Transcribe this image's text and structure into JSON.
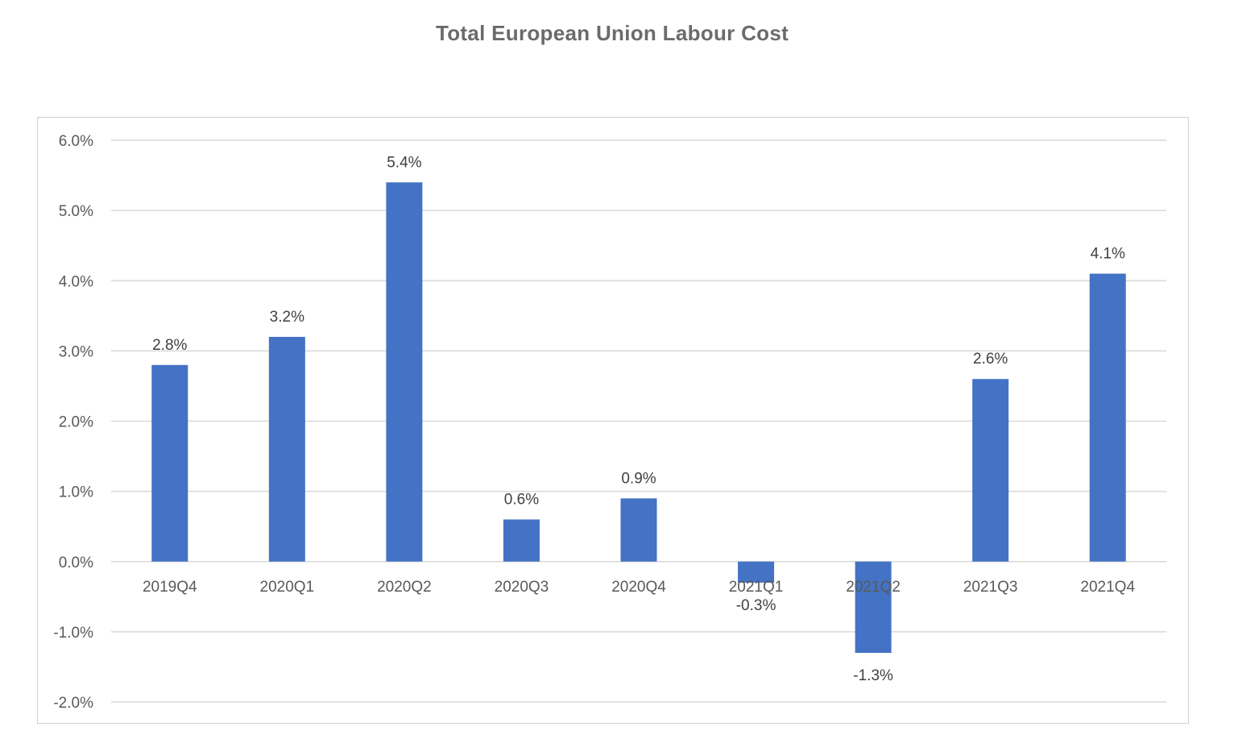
{
  "chart_data": {
    "type": "bar",
    "title": "Total European Union Labour Cost",
    "xlabel": "",
    "ylabel": "",
    "categories": [
      "2019Q4",
      "2020Q1",
      "2020Q2",
      "2020Q3",
      "2020Q4",
      "2021Q1",
      "2021Q2",
      "2021Q3",
      "2021Q4"
    ],
    "values": [
      2.8,
      3.2,
      5.4,
      0.6,
      0.9,
      -0.3,
      -1.3,
      2.6,
      4.1
    ],
    "data_labels": [
      "2.8%",
      "3.2%",
      "5.4%",
      "0.6%",
      "0.9%",
      "-0.3%",
      "-1.3%",
      "2.6%",
      "4.1%"
    ],
    "ylim": [
      -2.0,
      6.0
    ],
    "yticks": [
      6.0,
      5.0,
      4.0,
      3.0,
      2.0,
      1.0,
      0.0,
      -1.0,
      -2.0
    ],
    "ytick_labels": [
      "6.0%",
      "5.0%",
      "4.0%",
      "3.0%",
      "2.0%",
      "1.0%",
      "0.0%",
      "-1.0%",
      "-2.0%"
    ],
    "grid": true,
    "legend": "none",
    "bar_color": "#4472C4",
    "grid_color": "#d9d9d9"
  }
}
